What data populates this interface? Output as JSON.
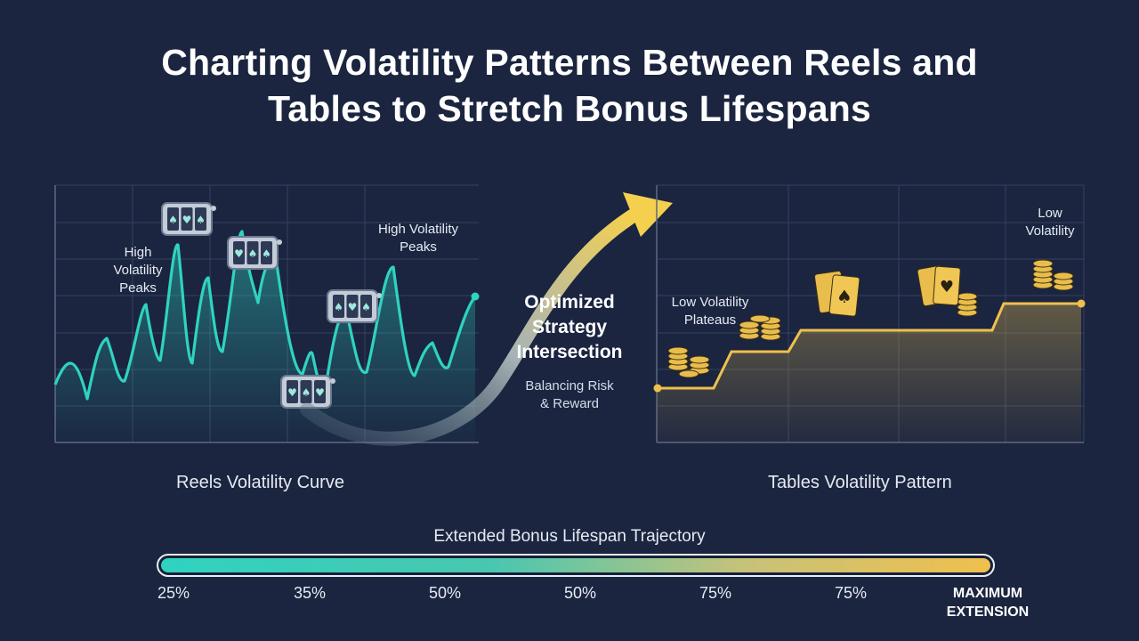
{
  "title": {
    "line1": "Charting Volatility Patterns Between Reels and",
    "line2": "Tables to Stretch Bonus Lifespans"
  },
  "reels_panel": {
    "caption": "Reels Volatility Curve",
    "annotation_left": [
      "High",
      "Volatility",
      "Peaks"
    ],
    "annotation_right": [
      "High Volatility",
      "Peaks"
    ],
    "icon": "slot-machine-reel-icon",
    "accent_color": "#2fd3c0"
  },
  "center": {
    "title": [
      "Optimized",
      "Strategy",
      "Intersection"
    ],
    "subtitle": [
      "Balancing Risk",
      "& Reward"
    ]
  },
  "tables_panel": {
    "caption": "Tables Volatility Pattern",
    "annotation_left": [
      "Low Volatility",
      "Plateaus"
    ],
    "annotation_right": [
      "Low",
      "Volatility"
    ],
    "icons": [
      "casino-chip-stack-icon",
      "playing-cards-icon"
    ],
    "accent_color": "#f0c04c"
  },
  "trajectory": {
    "title": "Extended Bonus Lifespan Trajectory",
    "ticks": [
      "25%",
      "35%",
      "50%",
      "50%",
      "75%",
      "75%"
    ],
    "max_label": [
      "MAXIMUM",
      "EXTENSION"
    ],
    "fill_fraction": 1.0
  }
}
